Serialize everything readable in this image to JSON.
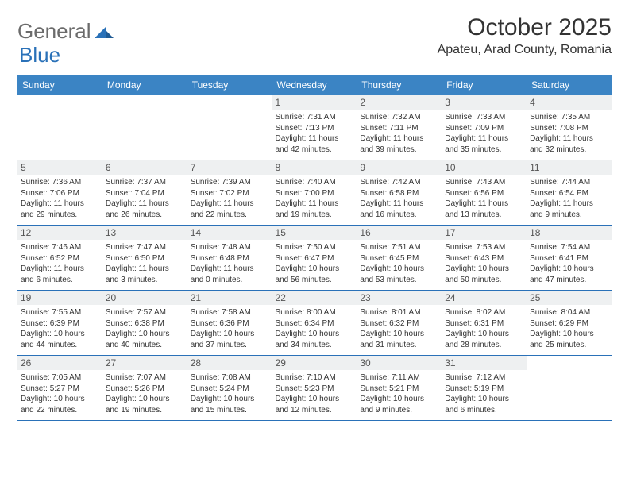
{
  "logo": {
    "text1": "General",
    "text2": "Blue"
  },
  "title": {
    "month_year": "October 2025",
    "location": "Apateu, Arad County, Romania"
  },
  "colors": {
    "header_bg": "#3b84c4",
    "header_text": "#ffffff",
    "border": "#2a71b8",
    "daynum_bg": "#eef0f1",
    "body_text": "#333333",
    "logo_gray": "#6b6b6b",
    "logo_blue": "#2a71b8",
    "page_bg": "#ffffff"
  },
  "dow": [
    "Sunday",
    "Monday",
    "Tuesday",
    "Wednesday",
    "Thursday",
    "Friday",
    "Saturday"
  ],
  "weeks": [
    [
      null,
      null,
      null,
      {
        "n": "1",
        "sr": "7:31 AM",
        "ss": "7:13 PM",
        "dl": "11 hours and 42 minutes."
      },
      {
        "n": "2",
        "sr": "7:32 AM",
        "ss": "7:11 PM",
        "dl": "11 hours and 39 minutes."
      },
      {
        "n": "3",
        "sr": "7:33 AM",
        "ss": "7:09 PM",
        "dl": "11 hours and 35 minutes."
      },
      {
        "n": "4",
        "sr": "7:35 AM",
        "ss": "7:08 PM",
        "dl": "11 hours and 32 minutes."
      }
    ],
    [
      {
        "n": "5",
        "sr": "7:36 AM",
        "ss": "7:06 PM",
        "dl": "11 hours and 29 minutes."
      },
      {
        "n": "6",
        "sr": "7:37 AM",
        "ss": "7:04 PM",
        "dl": "11 hours and 26 minutes."
      },
      {
        "n": "7",
        "sr": "7:39 AM",
        "ss": "7:02 PM",
        "dl": "11 hours and 22 minutes."
      },
      {
        "n": "8",
        "sr": "7:40 AM",
        "ss": "7:00 PM",
        "dl": "11 hours and 19 minutes."
      },
      {
        "n": "9",
        "sr": "7:42 AM",
        "ss": "6:58 PM",
        "dl": "11 hours and 16 minutes."
      },
      {
        "n": "10",
        "sr": "7:43 AM",
        "ss": "6:56 PM",
        "dl": "11 hours and 13 minutes."
      },
      {
        "n": "11",
        "sr": "7:44 AM",
        "ss": "6:54 PM",
        "dl": "11 hours and 9 minutes."
      }
    ],
    [
      {
        "n": "12",
        "sr": "7:46 AM",
        "ss": "6:52 PM",
        "dl": "11 hours and 6 minutes."
      },
      {
        "n": "13",
        "sr": "7:47 AM",
        "ss": "6:50 PM",
        "dl": "11 hours and 3 minutes."
      },
      {
        "n": "14",
        "sr": "7:48 AM",
        "ss": "6:48 PM",
        "dl": "11 hours and 0 minutes."
      },
      {
        "n": "15",
        "sr": "7:50 AM",
        "ss": "6:47 PM",
        "dl": "10 hours and 56 minutes."
      },
      {
        "n": "16",
        "sr": "7:51 AM",
        "ss": "6:45 PM",
        "dl": "10 hours and 53 minutes."
      },
      {
        "n": "17",
        "sr": "7:53 AM",
        "ss": "6:43 PM",
        "dl": "10 hours and 50 minutes."
      },
      {
        "n": "18",
        "sr": "7:54 AM",
        "ss": "6:41 PM",
        "dl": "10 hours and 47 minutes."
      }
    ],
    [
      {
        "n": "19",
        "sr": "7:55 AM",
        "ss": "6:39 PM",
        "dl": "10 hours and 44 minutes."
      },
      {
        "n": "20",
        "sr": "7:57 AM",
        "ss": "6:38 PM",
        "dl": "10 hours and 40 minutes."
      },
      {
        "n": "21",
        "sr": "7:58 AM",
        "ss": "6:36 PM",
        "dl": "10 hours and 37 minutes."
      },
      {
        "n": "22",
        "sr": "8:00 AM",
        "ss": "6:34 PM",
        "dl": "10 hours and 34 minutes."
      },
      {
        "n": "23",
        "sr": "8:01 AM",
        "ss": "6:32 PM",
        "dl": "10 hours and 31 minutes."
      },
      {
        "n": "24",
        "sr": "8:02 AM",
        "ss": "6:31 PM",
        "dl": "10 hours and 28 minutes."
      },
      {
        "n": "25",
        "sr": "8:04 AM",
        "ss": "6:29 PM",
        "dl": "10 hours and 25 minutes."
      }
    ],
    [
      {
        "n": "26",
        "sr": "7:05 AM",
        "ss": "5:27 PM",
        "dl": "10 hours and 22 minutes."
      },
      {
        "n": "27",
        "sr": "7:07 AM",
        "ss": "5:26 PM",
        "dl": "10 hours and 19 minutes."
      },
      {
        "n": "28",
        "sr": "7:08 AM",
        "ss": "5:24 PM",
        "dl": "10 hours and 15 minutes."
      },
      {
        "n": "29",
        "sr": "7:10 AM",
        "ss": "5:23 PM",
        "dl": "10 hours and 12 minutes."
      },
      {
        "n": "30",
        "sr": "7:11 AM",
        "ss": "5:21 PM",
        "dl": "10 hours and 9 minutes."
      },
      {
        "n": "31",
        "sr": "7:12 AM",
        "ss": "5:19 PM",
        "dl": "10 hours and 6 minutes."
      },
      null
    ]
  ],
  "labels": {
    "sunrise": "Sunrise: ",
    "sunset": "Sunset: ",
    "daylight": "Daylight: "
  }
}
